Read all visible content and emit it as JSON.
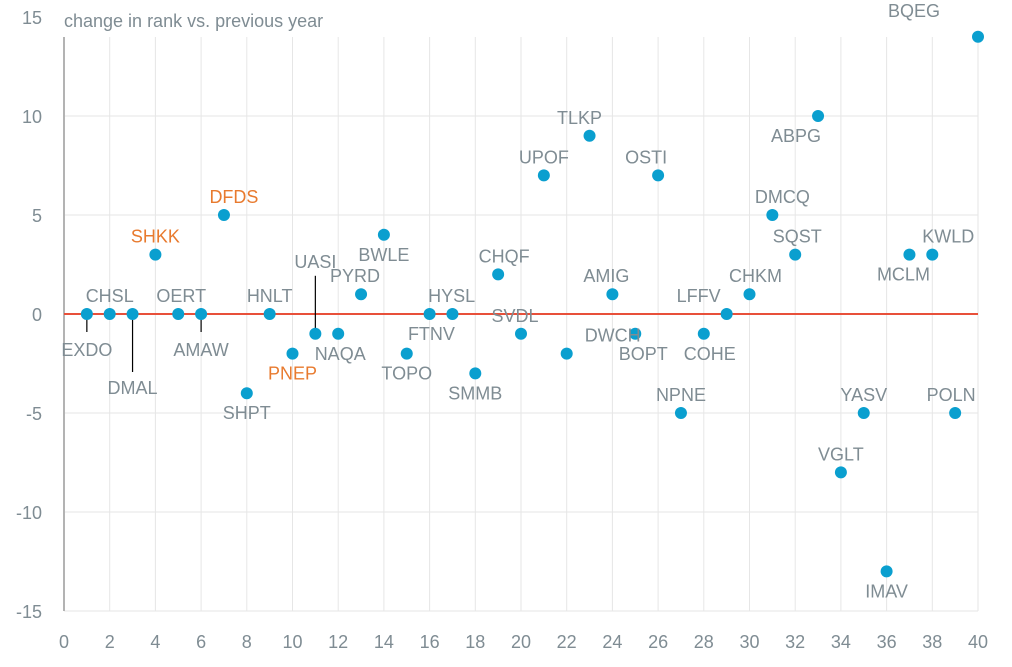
{
  "chart_data": {
    "type": "scatter",
    "title": "",
    "ylabel": "change in rank vs. previous year",
    "xlabel": "",
    "xlim": [
      0,
      40
    ],
    "ylim": [
      -15,
      15
    ],
    "xticks": [
      0,
      2,
      4,
      6,
      8,
      10,
      12,
      14,
      16,
      18,
      20,
      22,
      24,
      26,
      28,
      30,
      32,
      34,
      36,
      38,
      40
    ],
    "yticks": [
      15,
      10,
      5,
      0,
      -5,
      -10,
      -15
    ],
    "grid": true,
    "reference_line": {
      "y": 0,
      "color": "#e8503a"
    },
    "colors": {
      "point": "#0a9fcf",
      "label": "#7f8c93",
      "highlight_label": "#e87a2e",
      "grid": "#e6e6e6",
      "axis": "#b3b3b3"
    },
    "points": [
      {
        "x": 1,
        "y": 0,
        "label": "EXDO",
        "highlight": false,
        "label_pos": "below-leader"
      },
      {
        "x": 2,
        "y": 0,
        "label": "CHSL",
        "highlight": false,
        "label_pos": "above"
      },
      {
        "x": 3,
        "y": 0,
        "label": "DMAL",
        "highlight": false,
        "label_pos": "below-long-leader"
      },
      {
        "x": 4,
        "y": 3,
        "label": "SHKK",
        "highlight": true,
        "label_pos": "above"
      },
      {
        "x": 5,
        "y": 0,
        "label": "OERT",
        "highlight": false,
        "label_pos": "above"
      },
      {
        "x": 6,
        "y": 0,
        "label": "AMAW",
        "highlight": false,
        "label_pos": "below-leader"
      },
      {
        "x": 7,
        "y": 5,
        "label": "DFDS",
        "highlight": true,
        "label_pos": "above"
      },
      {
        "x": 8,
        "y": -4,
        "label": "SHPT",
        "highlight": false,
        "label_pos": "below"
      },
      {
        "x": 9,
        "y": 0,
        "label": "HNLT",
        "highlight": false,
        "label_pos": "above"
      },
      {
        "x": 10,
        "y": -2,
        "label": "PNEP",
        "highlight": true,
        "label_pos": "below"
      },
      {
        "x": 11,
        "y": -1,
        "label": "UASI",
        "highlight": false,
        "label_pos": "above-leader"
      },
      {
        "x": 12,
        "y": -1,
        "label": "NAQA",
        "highlight": false,
        "label_pos": "below"
      },
      {
        "x": 13,
        "y": 1,
        "label": "PYRD",
        "highlight": false,
        "label_pos": "above"
      },
      {
        "x": 14,
        "y": 4,
        "label": "BWLE",
        "highlight": false,
        "label_pos": "below"
      },
      {
        "x": 15,
        "y": -2,
        "label": "TOPO",
        "highlight": false,
        "label_pos": "below"
      },
      {
        "x": 16,
        "y": 0,
        "label": "HYSL",
        "highlight": false,
        "label_pos": "above-right"
      },
      {
        "x": 17,
        "y": 0,
        "label": "FTNV",
        "highlight": false,
        "label_pos": "below"
      },
      {
        "x": 18,
        "y": -3,
        "label": "SMMB",
        "highlight": false,
        "label_pos": "below"
      },
      {
        "x": 19,
        "y": 2,
        "label": "CHQF",
        "highlight": false,
        "label_pos": "above"
      },
      {
        "x": 20,
        "y": -1,
        "label": "SVDL",
        "highlight": false,
        "label_pos": "above"
      },
      {
        "x": 21,
        "y": 7,
        "label": "UPOF",
        "highlight": false,
        "label_pos": "above"
      },
      {
        "x": 22,
        "y": -2,
        "label": "DWCH",
        "highlight": false,
        "label_pos": "above-right"
      },
      {
        "x": 23,
        "y": 9,
        "label": "TLKP",
        "highlight": false,
        "label_pos": "above"
      },
      {
        "x": 24,
        "y": 1,
        "label": "AMIG",
        "highlight": false,
        "label_pos": "above"
      },
      {
        "x": 25,
        "y": -1,
        "label": "BOPT",
        "highlight": false,
        "label_pos": "below"
      },
      {
        "x": 26,
        "y": 7,
        "label": "OSTI",
        "highlight": false,
        "label_pos": "above"
      },
      {
        "x": 27,
        "y": -5,
        "label": "NPNE",
        "highlight": false,
        "label_pos": "above"
      },
      {
        "x": 28,
        "y": -1,
        "label": "COHE",
        "highlight": false,
        "label_pos": "below"
      },
      {
        "x": 29,
        "y": 0,
        "label": "LFFV",
        "highlight": false,
        "label_pos": "above-left"
      },
      {
        "x": 30,
        "y": 1,
        "label": "CHKM",
        "highlight": false,
        "label_pos": "above"
      },
      {
        "x": 31,
        "y": 5,
        "label": "DMCQ",
        "highlight": false,
        "label_pos": "above"
      },
      {
        "x": 32,
        "y": 3,
        "label": "SQST",
        "highlight": false,
        "label_pos": "above"
      },
      {
        "x": 33,
        "y": 10,
        "label": "ABPG",
        "highlight": false,
        "label_pos": "below"
      },
      {
        "x": 34,
        "y": -8,
        "label": "VGLT",
        "highlight": false,
        "label_pos": "above"
      },
      {
        "x": 35,
        "y": -5,
        "label": "YASV",
        "highlight": false,
        "label_pos": "above"
      },
      {
        "x": 36,
        "y": -13,
        "label": "IMAV",
        "highlight": false,
        "label_pos": "below"
      },
      {
        "x": 37,
        "y": 3,
        "label": "MCLM",
        "highlight": false,
        "label_pos": "below"
      },
      {
        "x": 38,
        "y": 3,
        "label": "KWLD",
        "highlight": false,
        "label_pos": "above"
      },
      {
        "x": 39,
        "y": -5,
        "label": "POLN",
        "highlight": false,
        "label_pos": "above"
      },
      {
        "x": 40,
        "y": 14,
        "label": "BQEG",
        "highlight": false,
        "label_pos": "above-left"
      }
    ]
  }
}
